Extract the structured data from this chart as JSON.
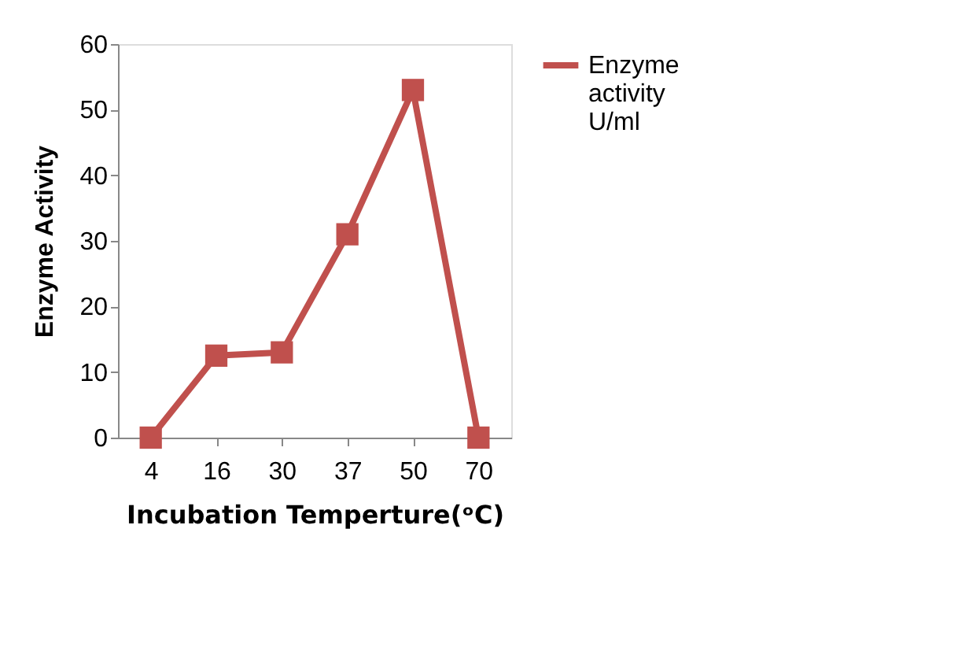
{
  "chart_data": {
    "type": "line",
    "xlabel": "Incubation  Temperture(ᵒC)",
    "ylabel": "Enzyme Activity",
    "categories": [
      "4",
      "16",
      "30",
      "37",
      "50",
      "70"
    ],
    "series": [
      {
        "name": "Enzyme activity U/ml",
        "color": "#c0504d",
        "values": [
          0,
          12.5,
          13,
          31,
          53,
          0
        ]
      }
    ],
    "ylim": [
      0,
      60
    ],
    "yticks": [
      0,
      10,
      20,
      30,
      40,
      50,
      60
    ],
    "grid": false,
    "legend": "right",
    "marker": "square",
    "line_style": "solid"
  }
}
